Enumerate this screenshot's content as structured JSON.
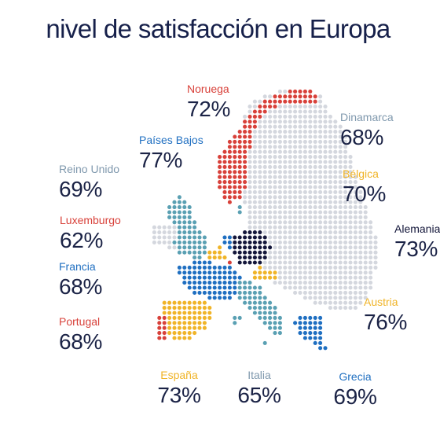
{
  "title": "nivel de satisfacción en Europa",
  "colors": {
    "red": "#d8413a",
    "blue": "#1f6fc1",
    "gray": "#7f98ad",
    "yellow": "#f0b428",
    "dark": "#13163a",
    "teal": "#5aa0b3",
    "land": "#d4d7de"
  },
  "countries": [
    {
      "id": "noruega",
      "name": "Noruega",
      "value": "72%",
      "color": "red"
    },
    {
      "id": "dinamarca",
      "name": "Dinamarca",
      "value": "68%",
      "color": "gray"
    },
    {
      "id": "paises-bajos",
      "name": "Países Bajos",
      "value": "77%",
      "color": "blue"
    },
    {
      "id": "reino-unido",
      "name": "Reino Unido",
      "value": "69%",
      "color": "gray"
    },
    {
      "id": "belgica",
      "name": "Bélgica",
      "value": "70%",
      "color": "yellow"
    },
    {
      "id": "luxemburgo",
      "name": "Luxemburgo",
      "value": "62%",
      "color": "red"
    },
    {
      "id": "alemania",
      "name": "Alemania",
      "value": "73%",
      "color": "dark"
    },
    {
      "id": "francia",
      "name": "Francia",
      "value": "68%",
      "color": "blue"
    },
    {
      "id": "austria",
      "name": "Austria",
      "value": "76%",
      "color": "yellow"
    },
    {
      "id": "portugal",
      "name": "Portugal",
      "value": "68%",
      "color": "red"
    },
    {
      "id": "espana",
      "name": "España",
      "value": "73%",
      "color": "yellow"
    },
    {
      "id": "italia",
      "name": "Italia",
      "value": "65%",
      "color": "gray"
    },
    {
      "id": "grecia",
      "name": "Grecia",
      "value": "69%",
      "color": "blue"
    }
  ]
}
